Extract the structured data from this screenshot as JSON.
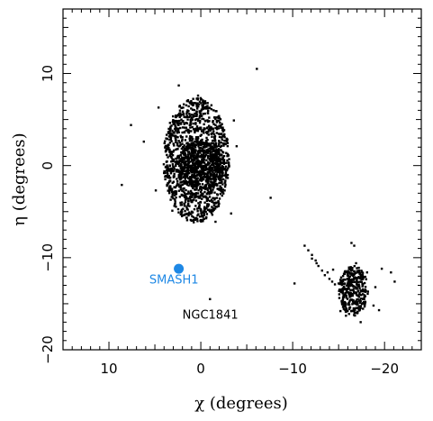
{
  "chart_data": {
    "type": "scatter",
    "title": "",
    "xlabel": "χ (degrees)",
    "ylabel": "η (degrees)",
    "xlim": [
      15,
      -24
    ],
    "ylim": [
      -20,
      17
    ],
    "x_reversed": true,
    "grid": false,
    "x_ticks": [
      10,
      0,
      -10,
      -20
    ],
    "x_tick_labels": [
      "10",
      "0",
      "−10",
      "−20"
    ],
    "y_ticks": [
      10,
      0,
      -10,
      -20
    ],
    "y_tick_labels": [
      "10",
      "0",
      "−10",
      "−20"
    ],
    "colors": {
      "points": "#000000",
      "highlight": "#1e88e5",
      "annotation": "#1e88e5"
    },
    "series": [
      {
        "description": "stellar scatter",
        "color": "#000000",
        "clusters": [
          {
            "center": [
              0.5,
              0.6
            ],
            "radius": [
              3.6,
              6.8
            ],
            "n": 1300
          },
          {
            "center": [
              0.0,
              0.0
            ],
            "radius": [
              2.6,
              2.6
            ],
            "n": 500
          },
          {
            "center": [
              -16.6,
              -13.6
            ],
            "radius": [
              1.6,
              2.7
            ],
            "n": 350
          }
        ],
        "points": [
          [
            -6.1,
            10.5
          ],
          [
            -7.6,
            -3.5
          ],
          [
            8.6,
            -2.1
          ],
          [
            -1.0,
            -14.5
          ],
          [
            -11.3,
            -8.7
          ],
          [
            -11.7,
            -9.2
          ],
          [
            -12.1,
            -9.7
          ],
          [
            -12.5,
            -10.3
          ],
          [
            -12.8,
            -10.9
          ],
          [
            -13.2,
            -11.4
          ],
          [
            -13.5,
            -11.9
          ],
          [
            -14.0,
            -12.3
          ],
          [
            -14.3,
            -12.6
          ],
          [
            -14.6,
            -12.9
          ],
          [
            -12.1,
            -10.1
          ],
          [
            -12.6,
            -10.6
          ],
          [
            -13.8,
            -11.6
          ],
          [
            -15.0,
            -12.8
          ],
          [
            -14.4,
            -11.3
          ],
          [
            -10.2,
            -12.8
          ],
          [
            -19.0,
            -13.2
          ],
          [
            -19.7,
            -11.2
          ],
          [
            -20.7,
            -11.6
          ],
          [
            -21.1,
            -12.6
          ],
          [
            -19.4,
            -15.7
          ],
          [
            -18.8,
            -15.2
          ],
          [
            -16.4,
            -8.4
          ],
          [
            -16.7,
            -8.7
          ],
          [
            -15.2,
            -15.8
          ],
          [
            -17.4,
            -17.0
          ],
          [
            -15.8,
            -16.3
          ],
          [
            -18.1,
            -11.6
          ],
          [
            -17.2,
            -11.1
          ],
          [
            -16.9,
            -10.6
          ],
          [
            2.4,
            8.7
          ],
          [
            7.6,
            4.4
          ],
          [
            6.2,
            2.6
          ],
          [
            4.6,
            6.3
          ],
          [
            -3.6,
            4.9
          ],
          [
            -3.9,
            2.1
          ],
          [
            4.9,
            -2.7
          ],
          [
            3.1,
            -4.9
          ],
          [
            -3.3,
            -5.2
          ],
          [
            1.1,
            -5.9
          ],
          [
            -1.6,
            -6.1
          ],
          [
            0.3,
            7.6
          ]
        ]
      },
      {
        "name": "SMASH1",
        "color": "#1e88e5",
        "points": [
          [
            2.4,
            -11.2
          ]
        ]
      }
    ],
    "annotations": [
      {
        "text": "SMASH1",
        "x": 5.6,
        "y": -12.8,
        "color": "#1e88e5"
      },
      {
        "text": "NGC1841",
        "x": 2.0,
        "y": -16.6,
        "color": "#000000"
      }
    ]
  }
}
